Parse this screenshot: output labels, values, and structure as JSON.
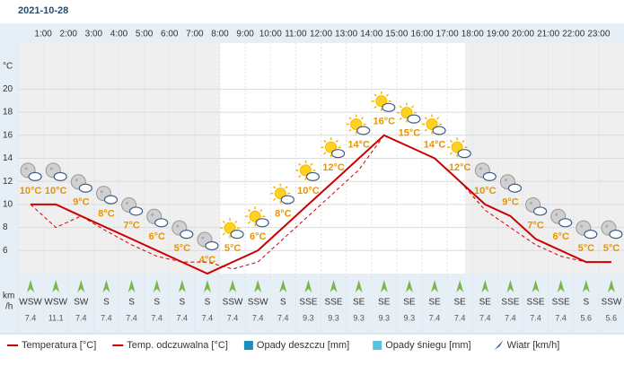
{
  "chart_data": {
    "type": "line",
    "title": "2021-10-28",
    "categories": [
      null,
      "1:00",
      "2:00",
      "3:00",
      "4:00",
      "5:00",
      "6:00",
      "7:00",
      "8:00",
      "9:00",
      "10:00",
      "11:00",
      "12:00",
      "13:00",
      "14:00",
      "15:00",
      "16:00",
      "17:00",
      "18:00",
      "19:00",
      "20:00",
      "21:00",
      "22:00",
      "23:00"
    ],
    "ylabel": "°C",
    "ylim": [
      4,
      24
    ],
    "yticks": [
      6,
      8,
      10,
      12,
      14,
      16,
      18,
      20
    ],
    "grid": true,
    "series": [
      {
        "name": "Temperatura [°C]",
        "color": "#cc0000",
        "dashed": false,
        "values": [
          10,
          10,
          9,
          8,
          7,
          6,
          5,
          4,
          5,
          6,
          8,
          10,
          12,
          14,
          16,
          15,
          14,
          12,
          10,
          9,
          7,
          6,
          5,
          5
        ],
        "value_labels": [
          "10°C",
          "10°C",
          "9°C",
          "8°C",
          "7°C",
          "6°C",
          "5°C",
          "4°C",
          "5°C",
          "6°C",
          "8°C",
          "10°C",
          "12°C",
          "14°C",
          "16°C",
          "15°C",
          "14°C",
          "12°C",
          "10°C",
          "9°C",
          "7°C",
          "6°C",
          "5°C",
          "5°C"
        ]
      },
      {
        "name": "Temp. odczuwalna [°C]",
        "color": "#cc0000",
        "dashed": true,
        "values": [
          10,
          8,
          9,
          7.7,
          6.5,
          5.5,
          5,
          5,
          4.4,
          5,
          7,
          9,
          11,
          13,
          16,
          15,
          14,
          12,
          9.5,
          8,
          6.5,
          5.5,
          5,
          5
        ]
      }
    ],
    "legend_extra": [
      {
        "name": "Opady deszczu [mm]",
        "color": "#1a8fc0"
      },
      {
        "name": "Opady śniegu [mm]",
        "color": "#5bc0de"
      },
      {
        "name": "Wiatr [km/h]",
        "color": "#2a5a8a"
      }
    ],
    "wind": {
      "unit": [
        "km",
        "/h"
      ],
      "color": "#7ab648",
      "directions": [
        "WSW",
        "WSW",
        "SW",
        "S",
        "S",
        "S",
        "S",
        "S",
        "SSW",
        "SSW",
        "S",
        "SSE",
        "SSE",
        "SE",
        "SE",
        "SE",
        "SE",
        "SE",
        "SE",
        "SSE",
        "SSE",
        "SSE",
        "S",
        "SSW"
      ],
      "speeds": [
        7.4,
        11.1,
        7.4,
        7.4,
        7.4,
        7.4,
        7.4,
        7.4,
        7.4,
        7.4,
        7.4,
        9.3,
        9.3,
        9.3,
        9.3,
        9.3,
        7.4,
        7.4,
        7.4,
        7.4,
        7.4,
        7.4,
        5.6,
        5.6
      ]
    }
  }
}
